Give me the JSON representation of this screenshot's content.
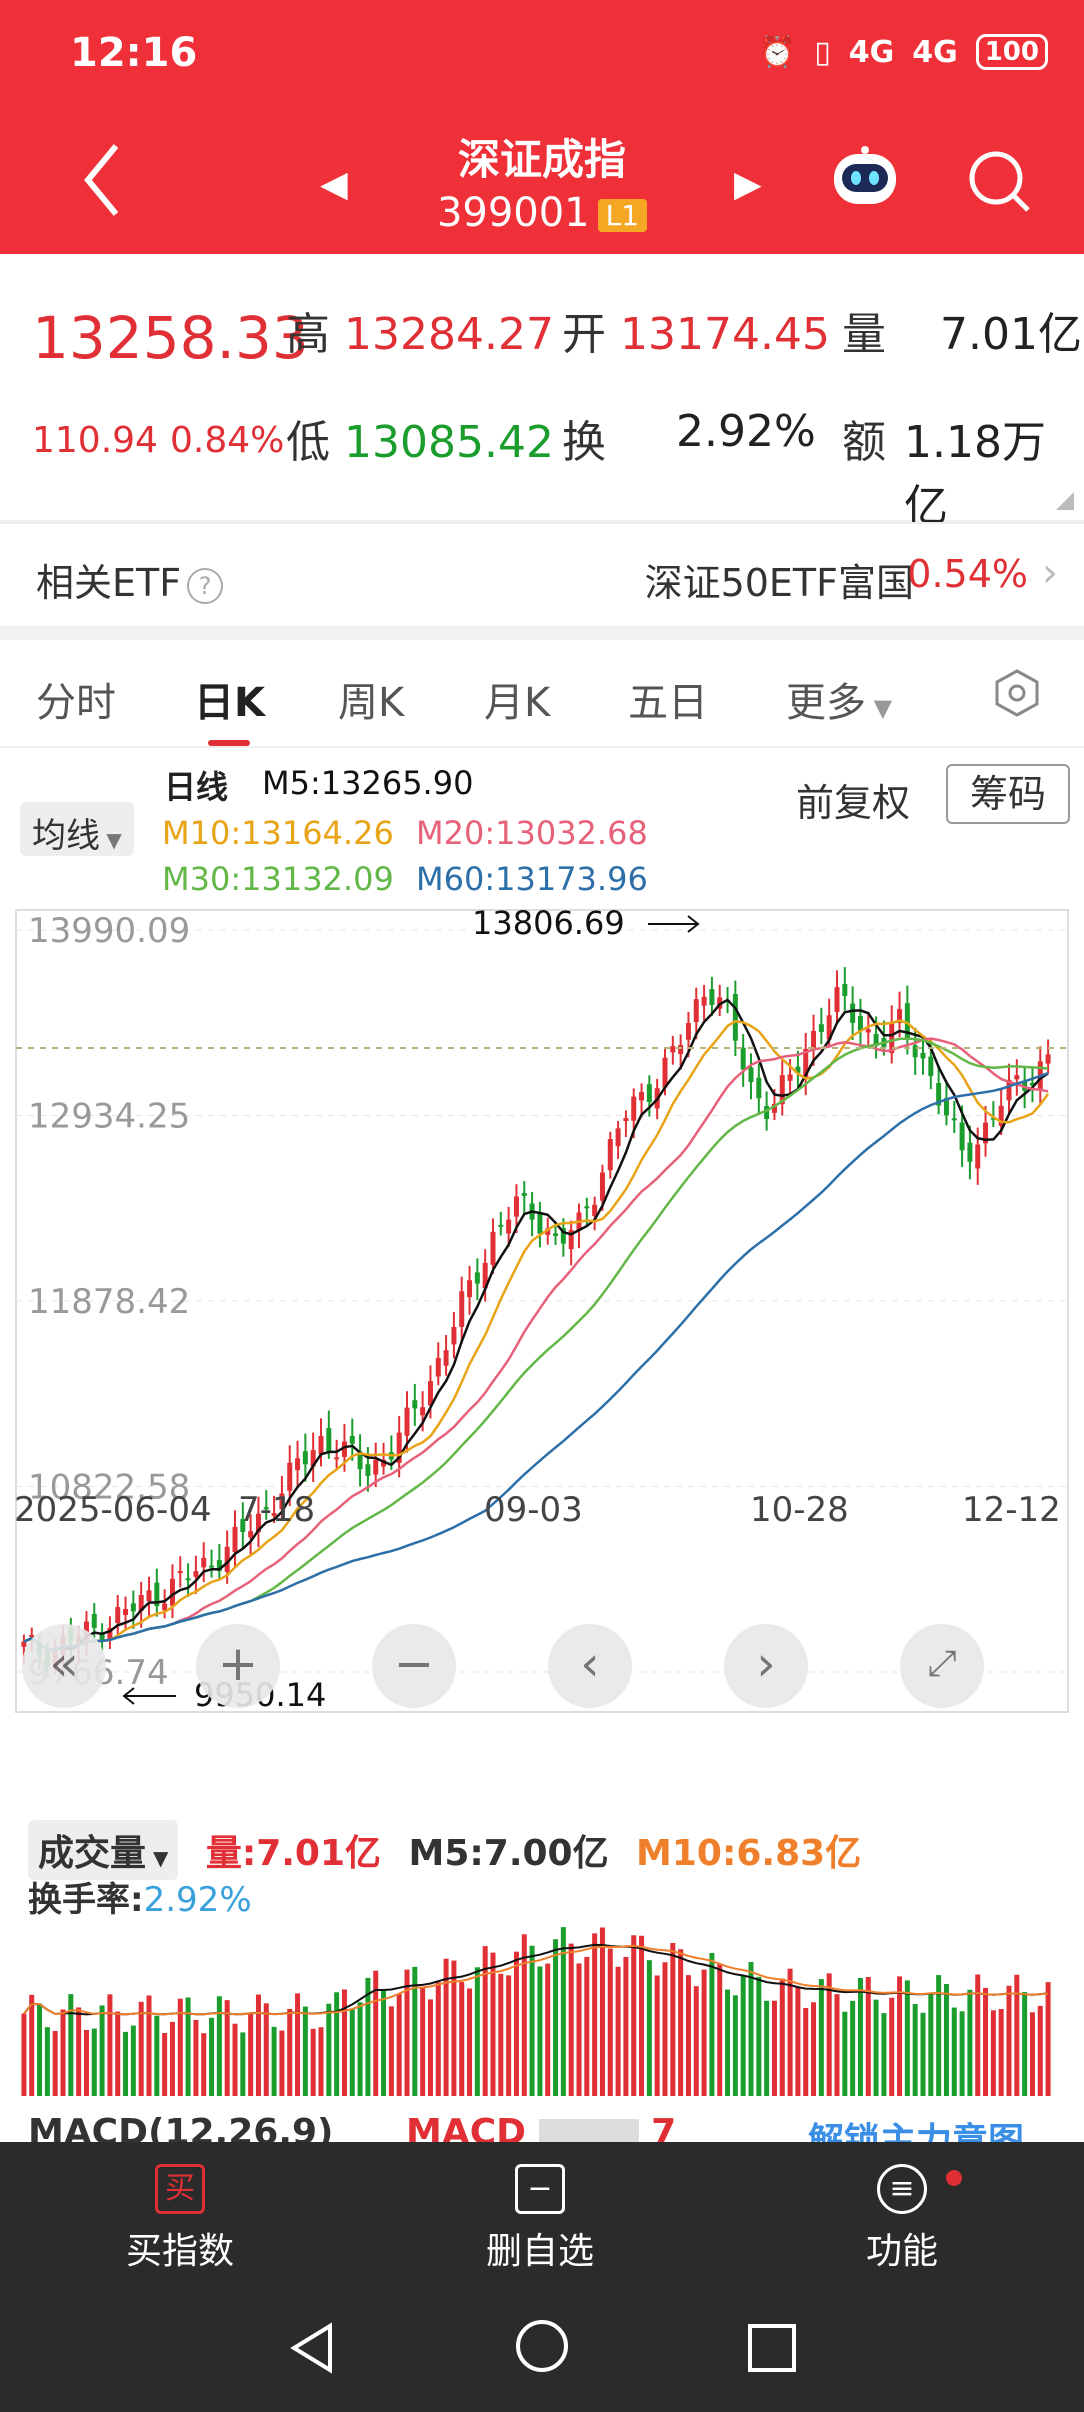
{
  "status": {
    "time": "12:16",
    "battery": "100",
    "network1": "4G",
    "network2": "4G"
  },
  "header": {
    "title": "深证成指",
    "code": "399001",
    "level": "L1"
  },
  "quote": {
    "price": "13258.33",
    "change": "110.94",
    "change_pct": "0.84%",
    "high_label": "高",
    "high": "13284.27",
    "open_label": "开",
    "open": "13174.45",
    "volume_label": "量",
    "volume": "7.01亿",
    "low_label": "低",
    "low": "13085.42",
    "turnover_label": "换",
    "turnover": "2.92%",
    "amount_label": "额",
    "amount": "1.18万亿"
  },
  "etf": {
    "label": "相关ETF",
    "name": "深证50ETF富国",
    "pct": "0.54%"
  },
  "tabs": [
    "分时",
    "日K",
    "周K",
    "月K",
    "五日",
    "更多"
  ],
  "chart": {
    "ma_select": "均线",
    "line_type": "日线",
    "ma5": "M5:13265.90",
    "ma10": "M10:13164.26",
    "ma20": "M20:13032.68",
    "ma30": "M30:13132.09",
    "ma60": "M60:13173.96",
    "adjust": "前复权",
    "chips": "筹码",
    "high_mark": "13806.69",
    "low_mark": "9950.14",
    "colors": {
      "ma5": "#111111",
      "ma10": "#e8a317",
      "ma20": "#e8617a",
      "ma30": "#62b746",
      "ma60": "#2d6fa8",
      "up": "#e02f35",
      "down": "#1a9d2c"
    }
  },
  "chart_data": {
    "type": "candlestick",
    "y_ticks": [
      "13990.09",
      "12934.25",
      "11878.42",
      "10822.58",
      "9766.74"
    ],
    "ylim": [
      9766.74,
      13990.09
    ],
    "x_ticks": [
      "2025-06-04",
      "7-18",
      "09-03",
      "10-28",
      "12-12"
    ],
    "close_series": [
      9900,
      9880,
      9950,
      9980,
      10060,
      10120,
      10200,
      10260,
      10330,
      10420,
      10520,
      10640,
      10800,
      10960,
      11100,
      11020,
      10920,
      11000,
      11180,
      11420,
      11700,
      11980,
      12250,
      12420,
      12380,
      12200,
      12300,
      12600,
      12900,
      13050,
      13200,
      13400,
      13700,
      13500,
      13100,
      12980,
      13150,
      13400,
      13600,
      13480,
      13350,
      13450,
      13300,
      13000,
      12700,
      12850,
      13050,
      13150,
      13258
    ],
    "volume": {
      "header": "成交量",
      "vol": "量:7.01亿",
      "m5": "M5:7.00亿",
      "m10": "M10:6.83亿",
      "turnover_label": "换手率:",
      "turnover": "2.92%"
    }
  },
  "macd": {
    "label": "MACD(12,26,9)",
    "value": "MACD",
    "value_tail": "7",
    "unlock": "解锁主力意图"
  },
  "bottombar": {
    "buy": "买指数",
    "buy_icon": "买",
    "delete": "删自选",
    "func": "功能"
  }
}
